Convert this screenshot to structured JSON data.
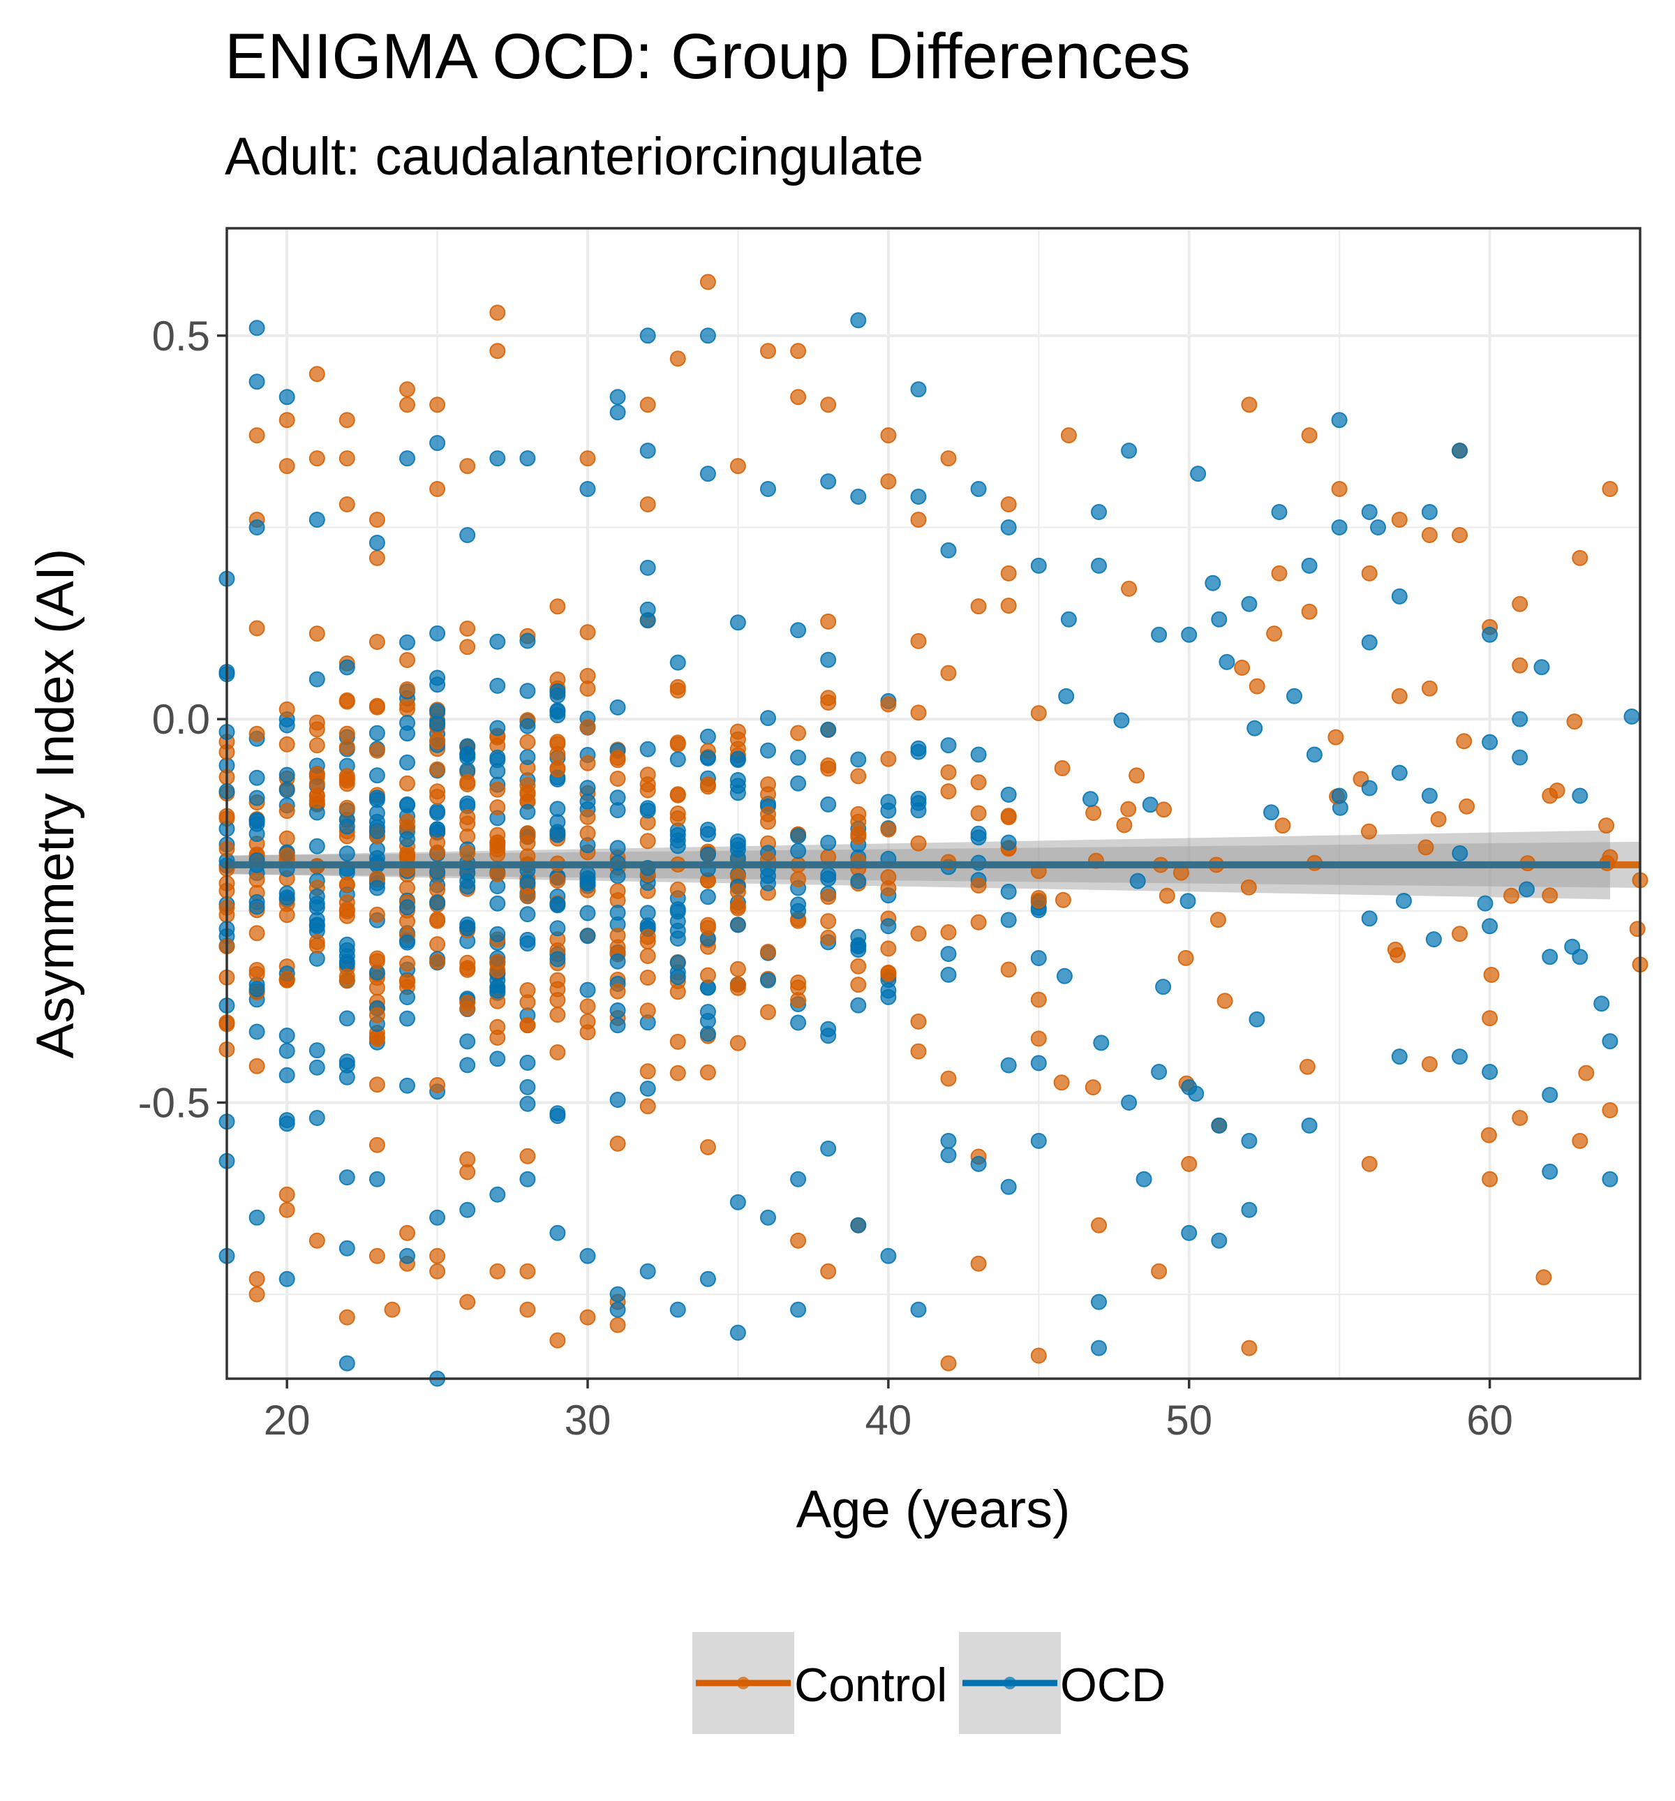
{
  "chart_data": {
    "type": "scatter",
    "title": "ENIGMA OCD: Group Differences",
    "subtitle": "Adult: caudalanteriorcingulate",
    "xlabel": "Age (years)",
    "ylabel": "Asymmetry Index (AI)",
    "xlim": [
      18,
      65
    ],
    "ylim": [
      -0.86,
      0.64
    ],
    "x_ticks": [
      20,
      30,
      40,
      50,
      60
    ],
    "x_tick_labels": [
      "20",
      "30",
      "40",
      "50",
      "60"
    ],
    "y_ticks": [
      -0.5,
      0.0,
      0.5
    ],
    "y_tick_labels": [
      "-0.5",
      "0.0",
      "0.5"
    ],
    "grid": true,
    "legend_position": "bottom",
    "series": [
      {
        "name": "Control",
        "color": "#D55E00",
        "trend": {
          "x": [
            18,
            65
          ],
          "y": [
            -0.19,
            -0.19
          ],
          "ci_halfwidth": [
            0.012,
            0.03
          ]
        },
        "points": [
          [
            19,
            0.37
          ],
          [
            19,
            0.26
          ],
          [
            19,
            -0.73
          ],
          [
            19,
            -0.75
          ],
          [
            20,
            0.39
          ],
          [
            20,
            0.33
          ],
          [
            20,
            -0.62
          ],
          [
            20,
            -0.64
          ],
          [
            21,
            0.34
          ],
          [
            21,
            0.45
          ],
          [
            21,
            -0.68
          ],
          [
            22,
            0.39
          ],
          [
            22,
            0.34
          ],
          [
            22,
            -0.78
          ],
          [
            22,
            0.28
          ],
          [
            23,
            0.26
          ],
          [
            23,
            0.21
          ],
          [
            23,
            -0.7
          ],
          [
            23.5,
            -0.77
          ],
          [
            24,
            0.43
          ],
          [
            24,
            0.41
          ],
          [
            24,
            -0.67
          ],
          [
            24,
            -0.71
          ],
          [
            25,
            0.41
          ],
          [
            25,
            0.3
          ],
          [
            25,
            -0.7
          ],
          [
            25,
            -0.72
          ],
          [
            26,
            0.33
          ],
          [
            26,
            -0.76
          ],
          [
            27,
            0.53
          ],
          [
            27,
            0.48
          ],
          [
            27,
            -0.72
          ],
          [
            28,
            -0.77
          ],
          [
            28,
            -0.72
          ],
          [
            29,
            -0.81
          ],
          [
            30,
            0.34
          ],
          [
            30,
            -0.78
          ],
          [
            31,
            -0.76
          ],
          [
            31,
            -0.79
          ],
          [
            32,
            0.41
          ],
          [
            32,
            0.28
          ],
          [
            33,
            0.47
          ],
          [
            34,
            0.57
          ],
          [
            35,
            0.33
          ],
          [
            36,
            0.48
          ],
          [
            37,
            0.48
          ],
          [
            37,
            0.42
          ],
          [
            37,
            -0.68
          ],
          [
            38,
            0.41
          ],
          [
            38,
            -0.72
          ],
          [
            39,
            -0.66
          ],
          [
            40,
            0.37
          ],
          [
            40,
            0.31
          ],
          [
            41,
            0.26
          ],
          [
            42,
            0.34
          ],
          [
            42,
            -0.84
          ],
          [
            43,
            -0.71
          ],
          [
            44,
            0.28
          ],
          [
            44,
            0.19
          ],
          [
            45,
            -0.83
          ],
          [
            46,
            0.37
          ],
          [
            47,
            -0.66
          ],
          [
            48,
            0.17
          ],
          [
            49,
            -0.72
          ],
          [
            50,
            -0.58
          ],
          [
            51,
            -0.53
          ],
          [
            52,
            0.41
          ],
          [
            52,
            -0.82
          ],
          [
            53,
            0.19
          ],
          [
            54,
            0.37
          ],
          [
            54,
            0.14
          ],
          [
            55,
            0.3
          ],
          [
            56,
            0.19
          ],
          [
            56,
            -0.58
          ],
          [
            57,
            0.26
          ],
          [
            57,
            0.03
          ],
          [
            58,
            0.24
          ],
          [
            58,
            0.04
          ],
          [
            58,
            -0.45
          ],
          [
            59,
            0.35
          ],
          [
            59,
            0.24
          ],
          [
            59,
            -0.28
          ],
          [
            60,
            0.12
          ],
          [
            60,
            -0.39
          ],
          [
            60,
            -0.6
          ],
          [
            61,
            0.15
          ],
          [
            61,
            0.07
          ],
          [
            61,
            -0.52
          ],
          [
            62,
            -0.1
          ],
          [
            62,
            -0.23
          ],
          [
            63,
            0.21
          ],
          [
            63,
            -0.55
          ],
          [
            64,
            0.3
          ],
          [
            64,
            -0.51
          ],
          [
            64,
            -0.18
          ],
          [
            65,
            -0.21
          ],
          [
            65,
            -0.32
          ]
        ]
      },
      {
        "name": "OCD",
        "color": "#0072B2",
        "trend": {
          "x": [
            18,
            64
          ],
          "y": [
            -0.19,
            -0.19
          ],
          "ci_halfwidth": [
            0.012,
            0.045
          ]
        },
        "points": [
          [
            18,
            -0.7
          ],
          [
            19,
            0.51
          ],
          [
            19,
            0.44
          ],
          [
            19,
            0.25
          ],
          [
            19,
            -0.65
          ],
          [
            20,
            0.42
          ],
          [
            20,
            -0.73
          ],
          [
            21,
            0.26
          ],
          [
            21,
            -0.52
          ],
          [
            22,
            -0.84
          ],
          [
            22,
            -0.69
          ],
          [
            23,
            0.23
          ],
          [
            23,
            -0.6
          ],
          [
            24,
            0.34
          ],
          [
            24,
            -0.7
          ],
          [
            25,
            0.36
          ],
          [
            25,
            -0.86
          ],
          [
            25,
            -0.65
          ],
          [
            26,
            0.24
          ],
          [
            26,
            -0.64
          ],
          [
            27,
            0.34
          ],
          [
            27,
            -0.62
          ],
          [
            28,
            0.34
          ],
          [
            28,
            -0.6
          ],
          [
            29,
            -0.67
          ],
          [
            30,
            0.3
          ],
          [
            30,
            -0.7
          ],
          [
            31,
            0.42
          ],
          [
            31,
            0.4
          ],
          [
            31,
            -0.75
          ],
          [
            31,
            -0.77
          ],
          [
            32,
            0.5
          ],
          [
            32,
            0.35
          ],
          [
            32,
            -0.72
          ],
          [
            33,
            -0.77
          ],
          [
            34,
            0.5
          ],
          [
            34,
            0.32
          ],
          [
            34,
            -0.73
          ],
          [
            35,
            -0.8
          ],
          [
            35,
            -0.63
          ],
          [
            36,
            0.3
          ],
          [
            36,
            -0.65
          ],
          [
            37,
            -0.77
          ],
          [
            37,
            -0.6
          ],
          [
            38,
            0.31
          ],
          [
            38,
            -0.56
          ],
          [
            39,
            0.52
          ],
          [
            39,
            0.29
          ],
          [
            39,
            -0.66
          ],
          [
            40,
            -0.7
          ],
          [
            41,
            0.43
          ],
          [
            41,
            0.29
          ],
          [
            41,
            -0.77
          ],
          [
            42,
            0.22
          ],
          [
            42,
            -0.55
          ],
          [
            43,
            0.3
          ],
          [
            43,
            -0.58
          ],
          [
            44,
            0.25
          ],
          [
            44,
            -0.61
          ],
          [
            45,
            0.2
          ],
          [
            45,
            -0.55
          ],
          [
            46,
            0.13
          ],
          [
            47,
            0.2
          ],
          [
            47,
            0.27
          ],
          [
            47,
            -0.76
          ],
          [
            47,
            -0.82
          ],
          [
            48,
            0.35
          ],
          [
            48,
            -0.5
          ],
          [
            48.5,
            -0.6
          ],
          [
            49,
            0.11
          ],
          [
            49,
            -0.46
          ],
          [
            50,
            0.11
          ],
          [
            50,
            -0.48
          ],
          [
            50,
            -0.67
          ],
          [
            50.3,
            0.32
          ],
          [
            51,
            0.13
          ],
          [
            51,
            -0.53
          ],
          [
            51,
            -0.68
          ],
          [
            52,
            0.15
          ],
          [
            52,
            -0.55
          ],
          [
            52,
            -0.64
          ],
          [
            53,
            0.27
          ],
          [
            53.5,
            0.03
          ],
          [
            54,
            0.2
          ],
          [
            54,
            -0.53
          ],
          [
            55,
            0.39
          ],
          [
            55,
            0.25
          ],
          [
            55,
            -0.1
          ],
          [
            56,
            0.27
          ],
          [
            56,
            0.1
          ],
          [
            56,
            -0.09
          ],
          [
            56,
            -0.26
          ],
          [
            57,
            0.16
          ],
          [
            57,
            -0.07
          ],
          [
            57,
            -0.44
          ],
          [
            58,
            0.27
          ],
          [
            58,
            -0.1
          ],
          [
            59,
            0.35
          ],
          [
            59,
            -0.44
          ],
          [
            60,
            0.11
          ],
          [
            60,
            -0.03
          ],
          [
            60,
            -0.27
          ],
          [
            60,
            -0.46
          ],
          [
            61,
            0.0
          ],
          [
            61,
            -0.05
          ],
          [
            62,
            -0.31
          ],
          [
            62,
            -0.49
          ],
          [
            62,
            -0.59
          ],
          [
            63,
            -0.1
          ],
          [
            63,
            -0.31
          ],
          [
            64,
            -0.42
          ],
          [
            64,
            -0.6
          ]
        ]
      }
    ]
  }
}
